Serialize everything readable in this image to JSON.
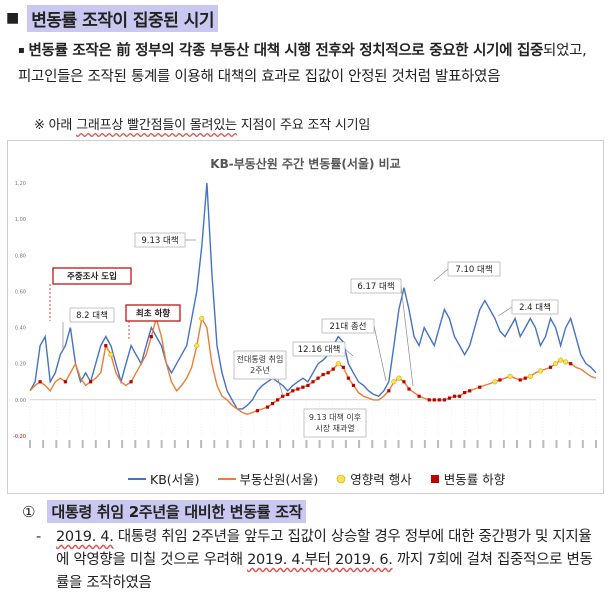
{
  "heading": {
    "marker": "■",
    "text": "변동률 조작이 집중된 시기"
  },
  "intro": {
    "bullet": "▪",
    "bold1": "변동률 조작은 前 정부의 각종 부동산 대책 시행 전후와 정치적으로 중요한 시기에 집중",
    "rest": "되었고, 피고인들은 조작된 통계를 이용해 대책의 효과로 집값이 안정된 것처럼 발표하였음"
  },
  "note": {
    "mark": "※",
    "pre": "아래 ",
    "underlined": "그래프상 빨간점들이 몰려있는",
    "post": " 지점이 주요 조작 시기임"
  },
  "chart_data": {
    "type": "line",
    "title": "KB-부동산원 주간 변동률(서울) 비교",
    "ylabel": "",
    "yticks": [
      "1.20",
      "1.00",
      "0.80",
      "0.60",
      "0.40",
      "0.20",
      "0.00",
      "-0.20"
    ],
    "ylim": [
      -0.2,
      1.2
    ],
    "series": [
      {
        "name": "KB(서울)",
        "color": "#4472c4",
        "values": [
          0.05,
          0.1,
          0.3,
          0.35,
          0.1,
          0.15,
          0.25,
          0.3,
          0.4,
          0.2,
          0.1,
          0.15,
          0.1,
          0.2,
          0.3,
          0.35,
          0.3,
          0.2,
          0.1,
          0.2,
          0.3,
          0.25,
          0.2,
          0.3,
          0.4,
          0.35,
          0.3,
          0.2,
          0.15,
          0.2,
          0.25,
          0.3,
          0.45,
          0.6,
          0.85,
          1.2,
          0.7,
          0.3,
          0.15,
          0.05,
          0.0,
          -0.05,
          -0.05,
          -0.03,
          0.0,
          0.05,
          0.08,
          0.1,
          0.12,
          0.1,
          0.08,
          0.05,
          0.08,
          0.1,
          0.12,
          0.1,
          0.15,
          0.2,
          0.22,
          0.25,
          0.3,
          0.35,
          0.32,
          0.2,
          0.15,
          0.1,
          0.08,
          0.05,
          0.03,
          0.02,
          0.05,
          0.1,
          0.3,
          0.5,
          0.62,
          0.5,
          0.35,
          0.3,
          0.4,
          0.35,
          0.3,
          0.4,
          0.5,
          0.45,
          0.35,
          0.3,
          0.25,
          0.3,
          0.4,
          0.5,
          0.55,
          0.5,
          0.45,
          0.38,
          0.35,
          0.4,
          0.45,
          0.35,
          0.4,
          0.45,
          0.4,
          0.3,
          0.35,
          0.45,
          0.4,
          0.3,
          0.4,
          0.45,
          0.35,
          0.25,
          0.2,
          0.18,
          0.15
        ]
      },
      {
        "name": "부동산원(서울)",
        "color": "#ed7d31",
        "values": [
          0.05,
          0.08,
          0.1,
          0.08,
          0.05,
          0.1,
          0.12,
          0.1,
          0.15,
          0.2,
          0.12,
          0.08,
          0.1,
          0.12,
          0.15,
          0.3,
          0.25,
          0.15,
          0.1,
          0.08,
          0.1,
          0.15,
          0.2,
          0.25,
          0.35,
          0.45,
          0.35,
          0.2,
          0.1,
          0.05,
          0.08,
          0.12,
          0.18,
          0.3,
          0.45,
          0.4,
          0.2,
          0.08,
          0.02,
          0.0,
          -0.03,
          -0.05,
          -0.07,
          -0.08,
          -0.07,
          -0.06,
          -0.05,
          -0.04,
          -0.02,
          0.0,
          0.02,
          0.03,
          0.05,
          0.06,
          0.07,
          0.08,
          0.1,
          0.12,
          0.14,
          0.15,
          0.17,
          0.2,
          0.18,
          0.12,
          0.08,
          0.04,
          0.02,
          0.01,
          0.0,
          0.0,
          0.02,
          0.05,
          0.1,
          0.12,
          0.1,
          0.06,
          0.04,
          0.02,
          0.01,
          0.0,
          0.0,
          0.0,
          0.0,
          0.01,
          0.02,
          0.02,
          0.04,
          0.05,
          0.06,
          0.07,
          0.08,
          0.09,
          0.1,
          0.11,
          0.12,
          0.13,
          0.12,
          0.11,
          0.12,
          0.13,
          0.15,
          0.16,
          0.17,
          0.18,
          0.2,
          0.22,
          0.21,
          0.2,
          0.18,
          0.17,
          0.15,
          0.13,
          0.12
        ]
      }
    ],
    "annotations": [
      {
        "label": "주중조사 도입",
        "red": true
      },
      {
        "label": "8.2 대책",
        "red": false
      },
      {
        "label": "최초 하향",
        "red": true
      },
      {
        "label": "9.13 대책",
        "red": false
      },
      {
        "label": "전대통령 취임 2주년",
        "red": false
      },
      {
        "label": "9.13 대책 이후 시장 재과열",
        "red": false
      },
      {
        "label": "12.16 대책",
        "red": false
      },
      {
        "label": "21대 총선",
        "red": false
      },
      {
        "label": "6.17 대책",
        "red": false
      },
      {
        "label": "7.10 대책",
        "red": false
      },
      {
        "label": "2.4 대책",
        "red": false
      }
    ],
    "legend": [
      "KB(서울)",
      "부동산원(서울)",
      "영향력 행사",
      "변동률 하향"
    ]
  },
  "section": {
    "num": "①",
    "title": "대통령 취임 2주년을 대비한 변동률 조작"
  },
  "detail": {
    "dash": "-",
    "text_a": "2019. 4.",
    "text_b": " 대통령 취임 2주년을 앞두고 집값이 상승할 경우 정부에 대한 중간평가 및 지지율에 악영향을 미칠 것으로 우려해 ",
    "text_c": "2019. 4.부터 2019. 6.",
    "text_d": " 까지 7회에 걸쳐 집중적으로 변동률을 조작하였음"
  }
}
